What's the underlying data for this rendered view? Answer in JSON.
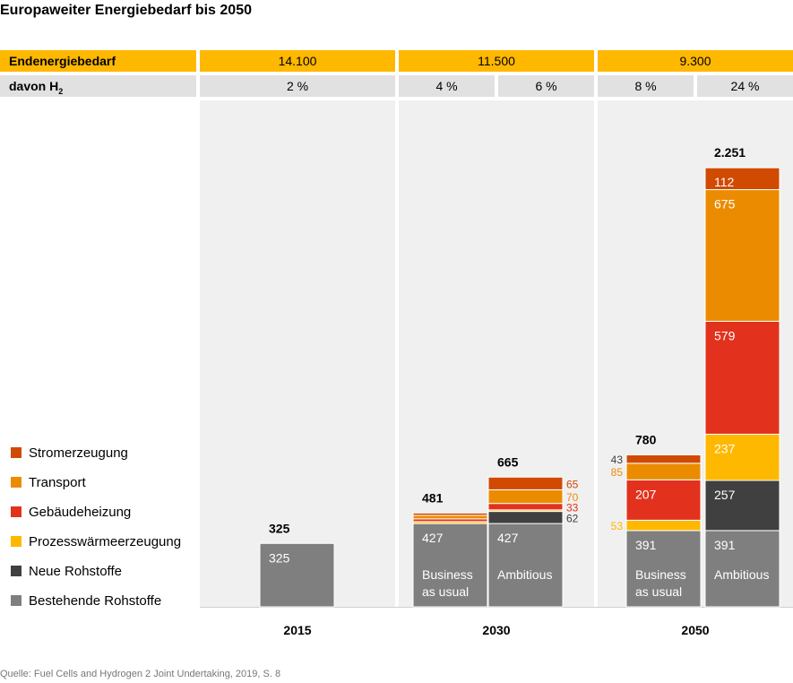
{
  "title": "Europaweiter Energiebedarf bis 2050",
  "header": {
    "row1_label": "Endenergiebedarf",
    "row2_label_main": "davon H",
    "row2_label_sub": "2",
    "row1_values": [
      "14.100",
      "11.500",
      "9.300"
    ],
    "row2_values": [
      "2 %",
      "4 %",
      "6 %",
      "8 %",
      "24 %"
    ]
  },
  "source": "Quelle: Fuel Cells and Hydrogen 2 Joint Undertaking, 2019, S. 8",
  "colors": {
    "Bestehende Rohstoffe": "#7f7f7f",
    "Neue Rohstoffe": "#404040",
    "Prozesswärmeerzeugung": "#ffb800",
    "Gebäudeheizung": "#e2321e",
    "Transport": "#eb8c00",
    "Stromerzeugung": "#d04a02",
    "header_row1": "#ffb800",
    "header_row2": "#e1e1e1",
    "panel": "#f0f0f0"
  },
  "chart_data": {
    "type": "bar",
    "stacked": true,
    "title": "Europaweiter Energiebedarf bis 2050",
    "ylim": [
      0,
      2300
    ],
    "legend_order": [
      "Stromerzeugung",
      "Transport",
      "Gebäudeheizung",
      "Prozesswärmeerzeugung",
      "Neue Rohstoffe",
      "Bestehende Rohstoffe"
    ],
    "stack_order": [
      "Bestehende Rohstoffe",
      "Neue Rohstoffe",
      "Prozesswärmeerzeugung",
      "Gebäudeheizung",
      "Transport",
      "Stromerzeugung"
    ],
    "groups": [
      "2015",
      "2030",
      "2050"
    ],
    "bars": [
      {
        "group": "2015",
        "label": "",
        "total_label": "325",
        "values": {
          "Bestehende Rohstoffe": 325,
          "Neue Rohstoffe": 0,
          "Prozesswärmeerzeugung": 0,
          "Gebäudeheizung": 0,
          "Transport": 0,
          "Stromerzeugung": 0
        },
        "inside_labels": {
          "Bestehende Rohstoffe": "325"
        },
        "side_labels": {}
      },
      {
        "group": "2030",
        "label": "Business\nas usual",
        "total_label": "481",
        "values": {
          "Bestehende Rohstoffe": 427,
          "Neue Rohstoffe": 0,
          "Prozesswärmeerzeugung": 10,
          "Gebäudeheizung": 14,
          "Transport": 18,
          "Stromerzeugung": 12
        },
        "inside_labels": {
          "Bestehende Rohstoffe": "427"
        },
        "side_labels": {}
      },
      {
        "group": "2030",
        "label": "Ambitious",
        "total_label": "665",
        "values": {
          "Bestehende Rohstoffe": 427,
          "Neue Rohstoffe": 62,
          "Prozesswärmeerzeugung": 8,
          "Gebäudeheizung": 33,
          "Transport": 70,
          "Stromerzeugung": 65
        },
        "inside_labels": {
          "Bestehende Rohstoffe": "427"
        },
        "side_labels": {
          "Stromerzeugung": "65",
          "Transport": "70",
          "Gebäudeheizung": "33",
          "Neue Rohstoffe": "62"
        }
      },
      {
        "group": "2050",
        "label": "Business\nas usual",
        "total_label": "780",
        "values": {
          "Bestehende Rohstoffe": 391,
          "Neue Rohstoffe": 0,
          "Prozesswärmeerzeugung": 53,
          "Gebäudeheizung": 207,
          "Transport": 85,
          "Stromerzeugung": 43
        },
        "inside_labels": {
          "Bestehende Rohstoffe": "391",
          "Gebäudeheizung": "207"
        },
        "side_labels_left": {
          "Stromerzeugung": "43",
          "Transport": "85",
          "Prozesswärmeerzeugung": "53"
        }
      },
      {
        "group": "2050",
        "label": "Ambitious",
        "total_label": "2.251",
        "values": {
          "Bestehende Rohstoffe": 391,
          "Neue Rohstoffe": 257,
          "Prozesswärmeerzeugung": 237,
          "Gebäudeheizung": 579,
          "Transport": 675,
          "Stromerzeugung": 112
        },
        "inside_labels": {
          "Bestehende Rohstoffe": "391",
          "Neue Rohstoffe": "257",
          "Prozesswärmeerzeugung": "237",
          "Gebäudeheizung": "579",
          "Transport": "675",
          "Stromerzeugung": "112"
        },
        "side_labels": {}
      }
    ]
  }
}
